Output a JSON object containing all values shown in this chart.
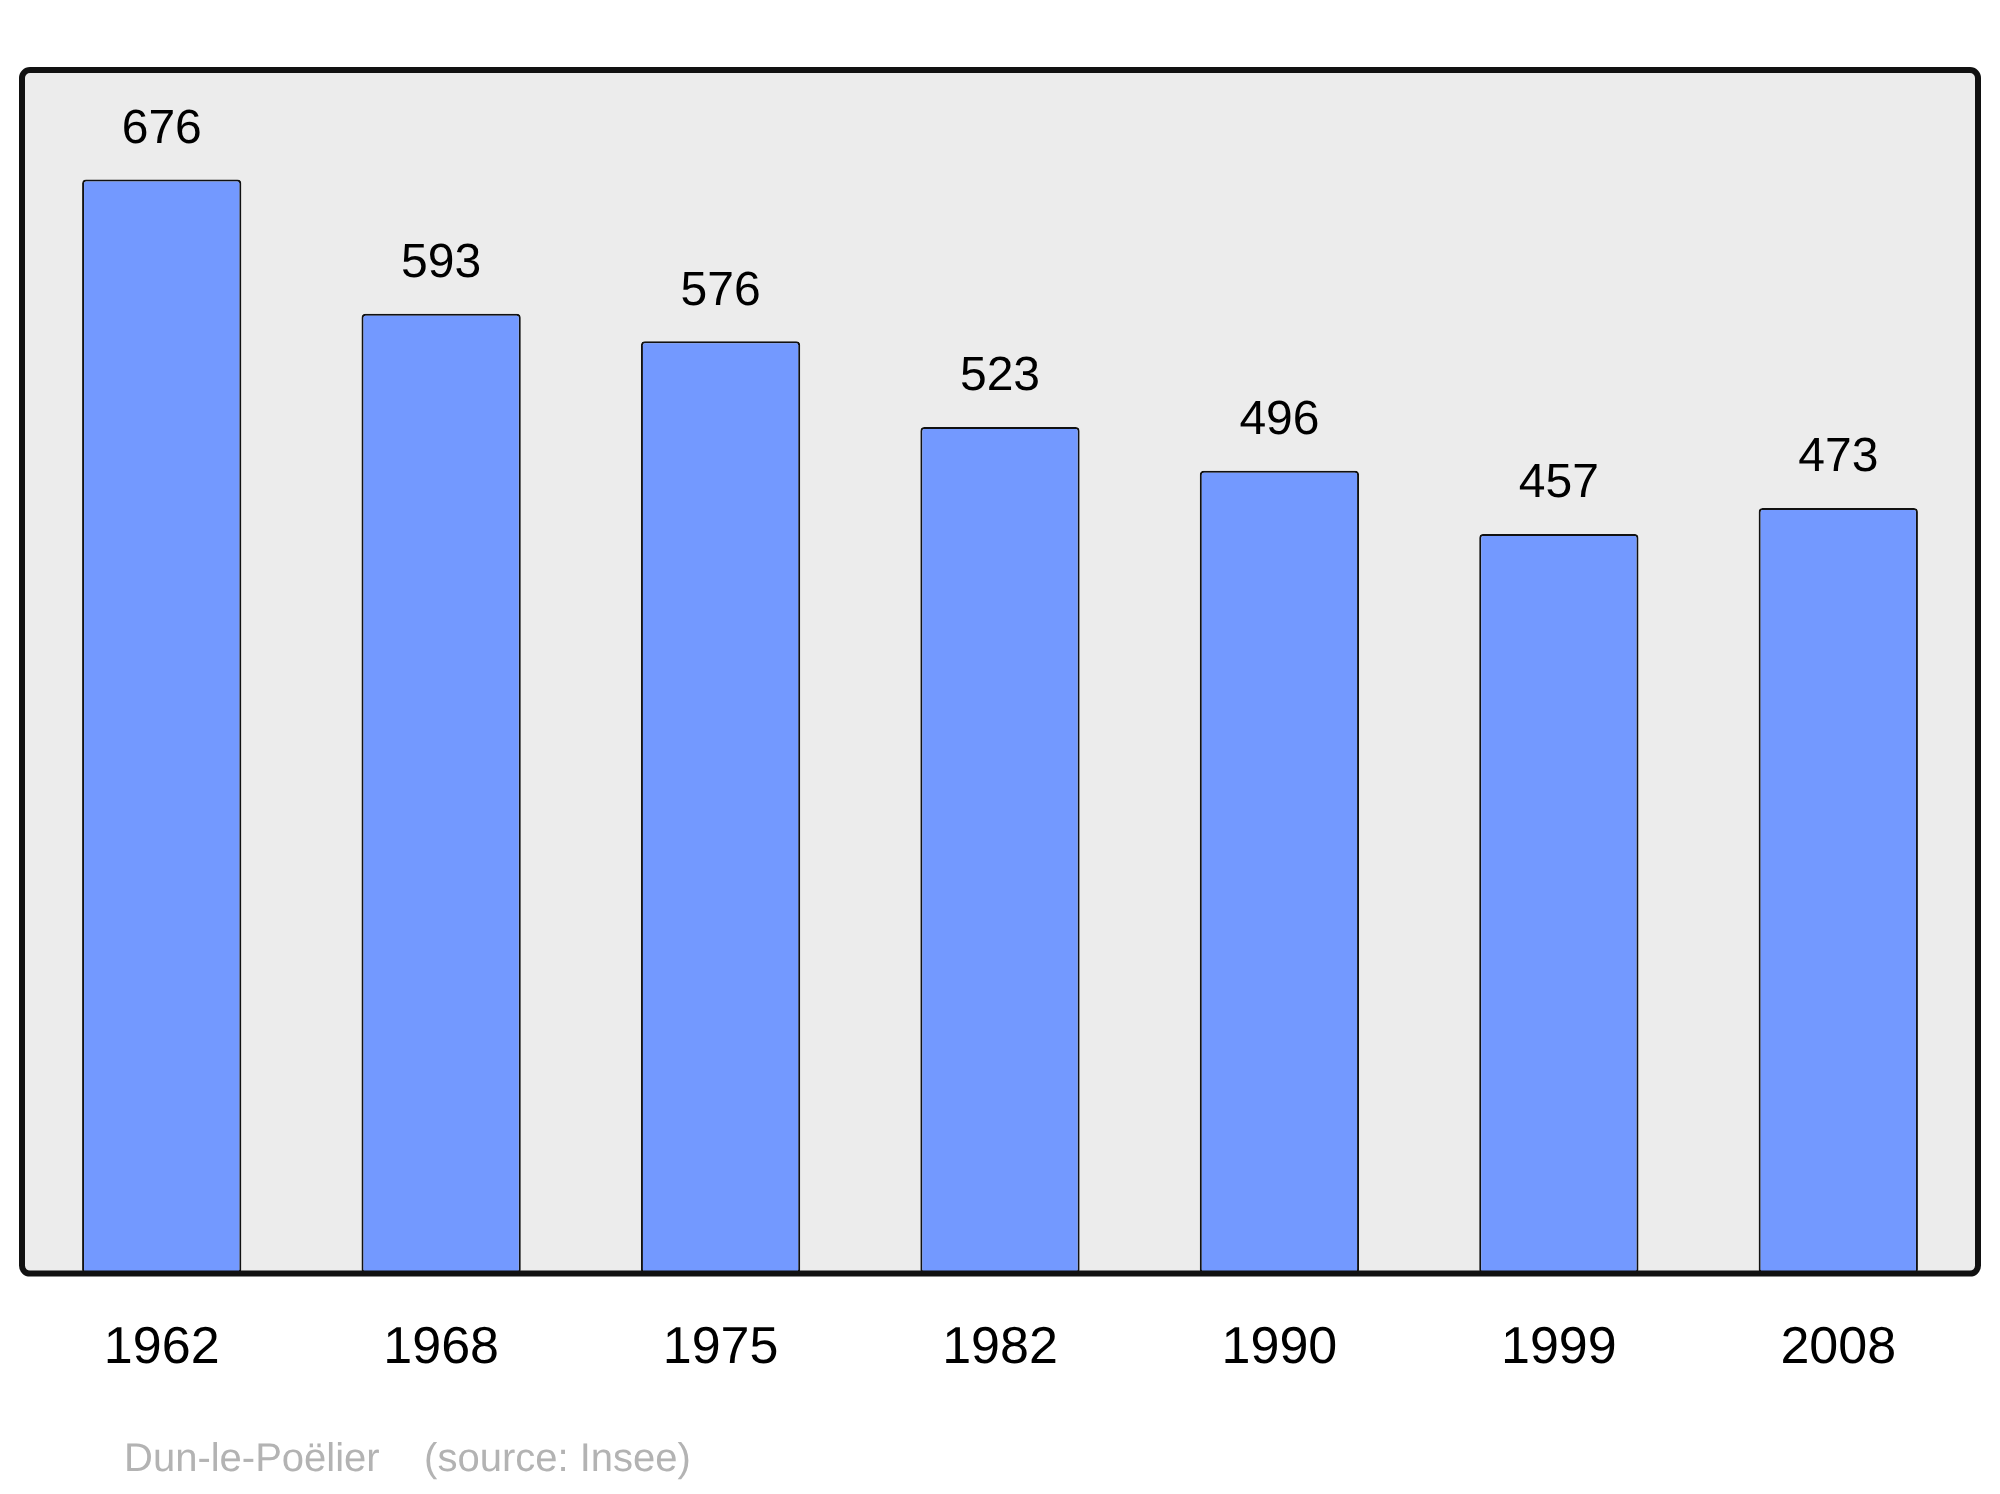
{
  "chart_data": {
    "type": "bar",
    "categories": [
      "1962",
      "1968",
      "1975",
      "1982",
      "1990",
      "1999",
      "2008"
    ],
    "values": [
      676,
      593,
      576,
      523,
      496,
      457,
      473
    ],
    "color": "#7399ff",
    "data_labels": true,
    "grid": false,
    "legend": false,
    "annotations": [
      "Dun-le-Poëlier    (source: Insee)"
    ]
  }
}
